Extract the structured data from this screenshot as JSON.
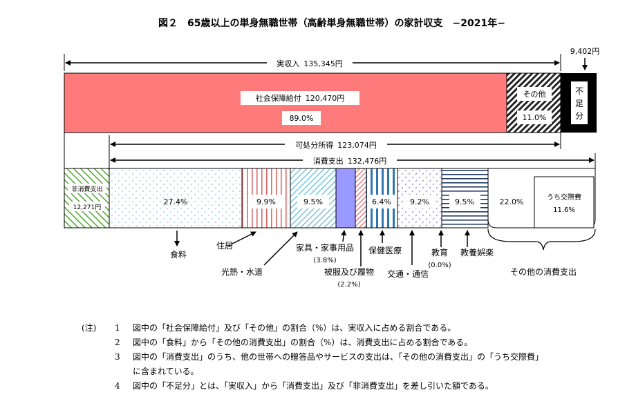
{
  "chart_data": {
    "type": "bar",
    "title": "図２　65歳以上の単身無職世帯（高齢単身無職世帯）の家計収支　−2021年−",
    "income": {
      "total_label": "実収入",
      "total_value": "135,345円",
      "segments": [
        {
          "key": "social",
          "label": "社会保障給付",
          "value": "120,470円",
          "percent": "89.0%",
          "share": 89.0,
          "color": "#ff7b7b"
        },
        {
          "key": "other",
          "label": "その他",
          "percent": "11.0%",
          "share": 11.0
        },
        {
          "key": "deficit",
          "label": "不足分",
          "chars": [
            "不",
            "足",
            "分"
          ],
          "value": "9,402円",
          "amount": 9402
        }
      ]
    },
    "disposable": {
      "label": "可処分所得",
      "value": "123,074円"
    },
    "consumption": {
      "label": "消費支出",
      "value": "132,476円",
      "non_consumption": {
        "label": "非消費支出",
        "value": "12,271円"
      },
      "categories": [
        {
          "key": "food",
          "label": "食料",
          "share": 27.4,
          "display": "27.4%"
        },
        {
          "key": "housing",
          "label": "住居",
          "share": 9.9,
          "display": "9.9%"
        },
        {
          "key": "utilities",
          "label": "光熱・水道",
          "share": 9.5,
          "display": "9.5%"
        },
        {
          "key": "furniture",
          "label": "家具・家事用品",
          "share": 3.8,
          "display": "(3.8%)",
          "color": "#9999ff"
        },
        {
          "key": "clothing",
          "label": "被服及び履物",
          "share": 2.2,
          "display": "(2.2%)"
        },
        {
          "key": "medical",
          "label": "保健医療",
          "share": 6.4,
          "display": "6.4%",
          "color": "#2e75b6"
        },
        {
          "key": "transport",
          "label": "交通・通信",
          "share": 9.2,
          "display": "9.2%"
        },
        {
          "key": "education",
          "label": "教育",
          "share": 0.0,
          "display": "(0.0%)"
        },
        {
          "key": "culture",
          "label": "教養娯楽",
          "share": 9.5,
          "display": "9.5%",
          "color": "#1f3864"
        },
        {
          "key": "others",
          "label": "その他の消費支出",
          "share": 22.0,
          "display": "22.0%"
        }
      ],
      "sub": {
        "label": "うち交際費",
        "value": "11.6%"
      }
    }
  },
  "notes": {
    "heading": "(注)",
    "items": [
      {
        "num": "1",
        "text": "図中の「社会保障給付」及び「その他」の割合（%）は、実収入に占める割合である。"
      },
      {
        "num": "2",
        "text": "図中の「食料」から「その他の消費支出」の割合（%）は、消費支出に占める割合である。"
      },
      {
        "num": "3",
        "text": "図中の「消費支出」のうち、他の世帯への贈答品やサービスの支出は、「その他の消費支出」の「うち交際費」"
      },
      {
        "num": "",
        "text": "に含まれている。"
      },
      {
        "num": "4",
        "text": "図中の「不足分」とは、「実収入」から「消費支出」及び「非消費支出」を差し引いた額である。"
      }
    ]
  }
}
